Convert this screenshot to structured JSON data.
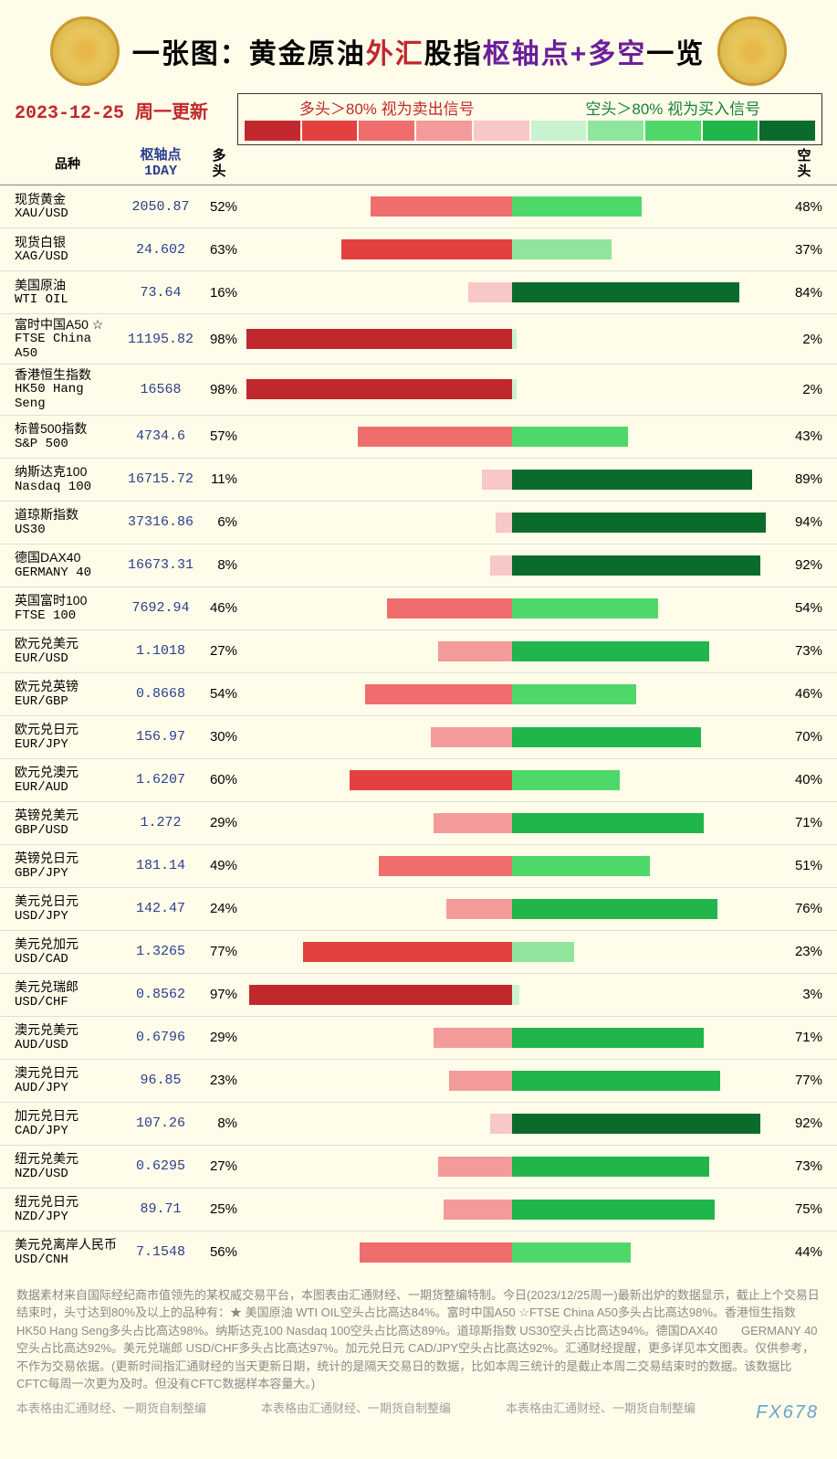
{
  "title": {
    "p1": "一张图：黄金原油",
    "p2": "外汇",
    "p3": "股指",
    "p4": "枢轴点+多空",
    "p5": "一览"
  },
  "date": "2023-12-25  周一更新",
  "legend": {
    "sell": "多头＞80%  视为卖出信号",
    "buy": "空头＞80%  视为买入信号"
  },
  "headers": {
    "name": "品种",
    "pivot1": "枢轴点",
    "pivot2": "1DAY",
    "long1": "多",
    "long2": "头",
    "short1": "空",
    "short2": "头"
  },
  "reds": [
    "#c0282d",
    "#e3413f",
    "#ef6d6d",
    "#f39b9b",
    "#f8c7c7"
  ],
  "greens": [
    "#c9f2d0",
    "#8fe59b",
    "#4fd86a",
    "#21b64b",
    "#0a6b2c"
  ],
  "rows": [
    {
      "cn": "现货黄金",
      "en": "XAU/USD",
      "pivot": "2050.87",
      "long": 52,
      "short": 48
    },
    {
      "cn": "现货白银",
      "en": "XAG/USD",
      "pivot": "24.602",
      "long": 63,
      "short": 37
    },
    {
      "cn": "美国原油",
      "en": "WTI OIL",
      "pivot": "73.64",
      "long": 16,
      "short": 84
    },
    {
      "cn": "富时中国A50 ☆",
      "en": "FTSE China A50",
      "pivot": "11195.82",
      "long": 98,
      "short": 2
    },
    {
      "cn": "香港恒生指数",
      "en": "HK50 Hang Seng",
      "pivot": "16568",
      "long": 98,
      "short": 2
    },
    {
      "cn": "标普500指数",
      "en": "S&P 500",
      "pivot": "4734.6",
      "long": 57,
      "short": 43
    },
    {
      "cn": "纳斯达克100",
      "en": "Nasdaq 100",
      "pivot": "16715.72",
      "long": 11,
      "short": 89
    },
    {
      "cn": "道琼斯指数",
      "en": "US30",
      "pivot": "37316.86",
      "long": 6,
      "short": 94
    },
    {
      "cn": "德国DAX40",
      "en": "GERMANY 40",
      "pivot": "16673.31",
      "long": 8,
      "short": 92
    },
    {
      "cn": "英国富时100",
      "en": "FTSE 100",
      "pivot": "7692.94",
      "long": 46,
      "short": 54
    },
    {
      "cn": "欧元兑美元",
      "en": "EUR/USD",
      "pivot": "1.1018",
      "long": 27,
      "short": 73
    },
    {
      "cn": "欧元兑英镑",
      "en": "EUR/GBP",
      "pivot": "0.8668",
      "long": 54,
      "short": 46
    },
    {
      "cn": "欧元兑日元",
      "en": "EUR/JPY",
      "pivot": "156.97",
      "long": 30,
      "short": 70
    },
    {
      "cn": "欧元兑澳元",
      "en": "EUR/AUD",
      "pivot": "1.6207",
      "long": 60,
      "short": 40
    },
    {
      "cn": "英镑兑美元",
      "en": "GBP/USD",
      "pivot": "1.272",
      "long": 29,
      "short": 71
    },
    {
      "cn": "英镑兑日元",
      "en": "GBP/JPY",
      "pivot": "181.14",
      "long": 49,
      "short": 51
    },
    {
      "cn": "美元兑日元",
      "en": "USD/JPY",
      "pivot": "142.47",
      "long": 24,
      "short": 76
    },
    {
      "cn": "美元兑加元",
      "en": "USD/CAD",
      "pivot": "1.3265",
      "long": 77,
      "short": 23
    },
    {
      "cn": "美元兑瑞郎",
      "en": "USD/CHF",
      "pivot": "0.8562",
      "long": 97,
      "short": 3
    },
    {
      "cn": "澳元兑美元",
      "en": "AUD/USD",
      "pivot": "0.6796",
      "long": 29,
      "short": 71
    },
    {
      "cn": "澳元兑日元",
      "en": "AUD/JPY",
      "pivot": "96.85",
      "long": 23,
      "short": 77
    },
    {
      "cn": "加元兑日元",
      "en": "CAD/JPY",
      "pivot": "107.26",
      "long": 8,
      "short": 92
    },
    {
      "cn": "纽元兑美元",
      "en": "NZD/USD",
      "pivot": "0.6295",
      "long": 27,
      "short": 73
    },
    {
      "cn": "纽元兑日元",
      "en": "NZD/JPY",
      "pivot": "89.71",
      "long": 25,
      "short": 75
    },
    {
      "cn": "美元兑离岸人民币",
      "en": "USD/CNH",
      "pivot": "7.1548",
      "long": 56,
      "short": 44
    }
  ],
  "footer": "数据素材来自国际经纪商市值领先的某权威交易平台，本图表由汇通财经、一期货整编特制。今日(2023/12/25周一)最新出炉的数据显示，截止上个交易日结束时，头寸达到80%及以上的品种有：★ 美国原油 WTI OIL空头占比高达84%。富时中国A50 ☆FTSE China A50多头占比高达98%。香港恒生指数 HK50 Hang Seng多头占比高达98%。纳斯达克100 Nasdaq 100空头占比高达89%。道琼斯指数 US30空头占比高达94%。德国DAX40　　GERMANY 40空头占比高达92%。美元兑瑞郎 USD/CHF多头占比高达97%。加元兑日元 CAD/JPY空头占比高达92%。汇通财经提醒，更多详见本文图表。仅供参考，不作为交易依据。(更新时间指汇通财经的当天更新日期，统计的是隔天交易日的数据，比如本周三统计的是截止本周二交易结束时的数据。该数据比CFTC每周一次更为及时。但没有CFTC数据样本容量大。)",
  "footer2": "本表格由汇通财经、一期货自制整编",
  "watermark": "FX678"
}
